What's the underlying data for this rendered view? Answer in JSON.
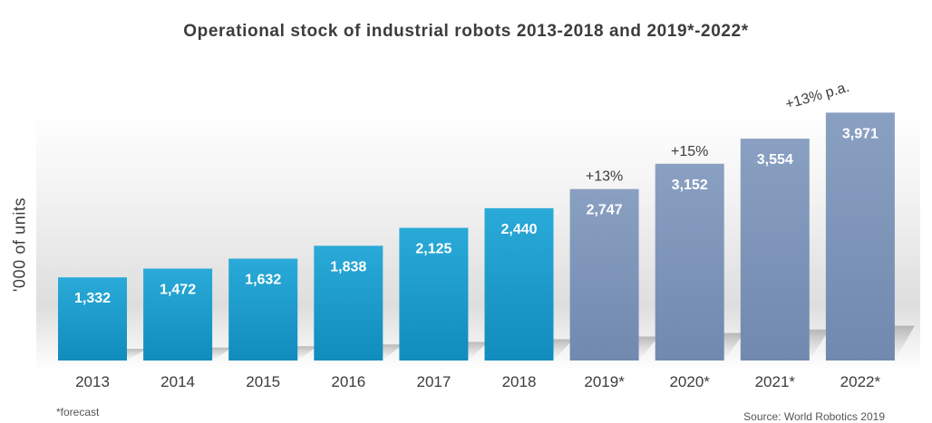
{
  "chart_data": {
    "type": "bar",
    "title": "Operational stock of industrial robots 2013-2018 and 2019*-2022*",
    "xlabel": "",
    "ylabel": "'000 of units",
    "categories": [
      "2013",
      "2014",
      "2015",
      "2016",
      "2017",
      "2018",
      "2019*",
      "2020*",
      "2021*",
      "2022*"
    ],
    "values": [
      1332,
      1472,
      1632,
      1838,
      2125,
      2440,
      2747,
      3152,
      3554,
      3971
    ],
    "value_labels": [
      "1,332",
      "1,472",
      "1,632",
      "1,838",
      "2,125",
      "2,440",
      "2,747",
      "3,152",
      "3,554",
      "3,971"
    ],
    "forecast": [
      false,
      false,
      false,
      false,
      false,
      false,
      true,
      true,
      true,
      true
    ],
    "annotations": [
      {
        "category": "2019*",
        "text": "+13%"
      },
      {
        "category": "2020*",
        "text": "+15%"
      },
      {
        "category": "2022*",
        "text": "+13% p.a."
      }
    ],
    "ylim": [
      0,
      4150
    ],
    "grid": false,
    "legend": "none",
    "colors": {
      "actual": "#1a9ccc",
      "forecast": "#7d94b8",
      "value_label": "#ffffff",
      "text": "#3c3c3c"
    }
  },
  "footnote": "*forecast",
  "source": "Source: World Robotics 2019"
}
